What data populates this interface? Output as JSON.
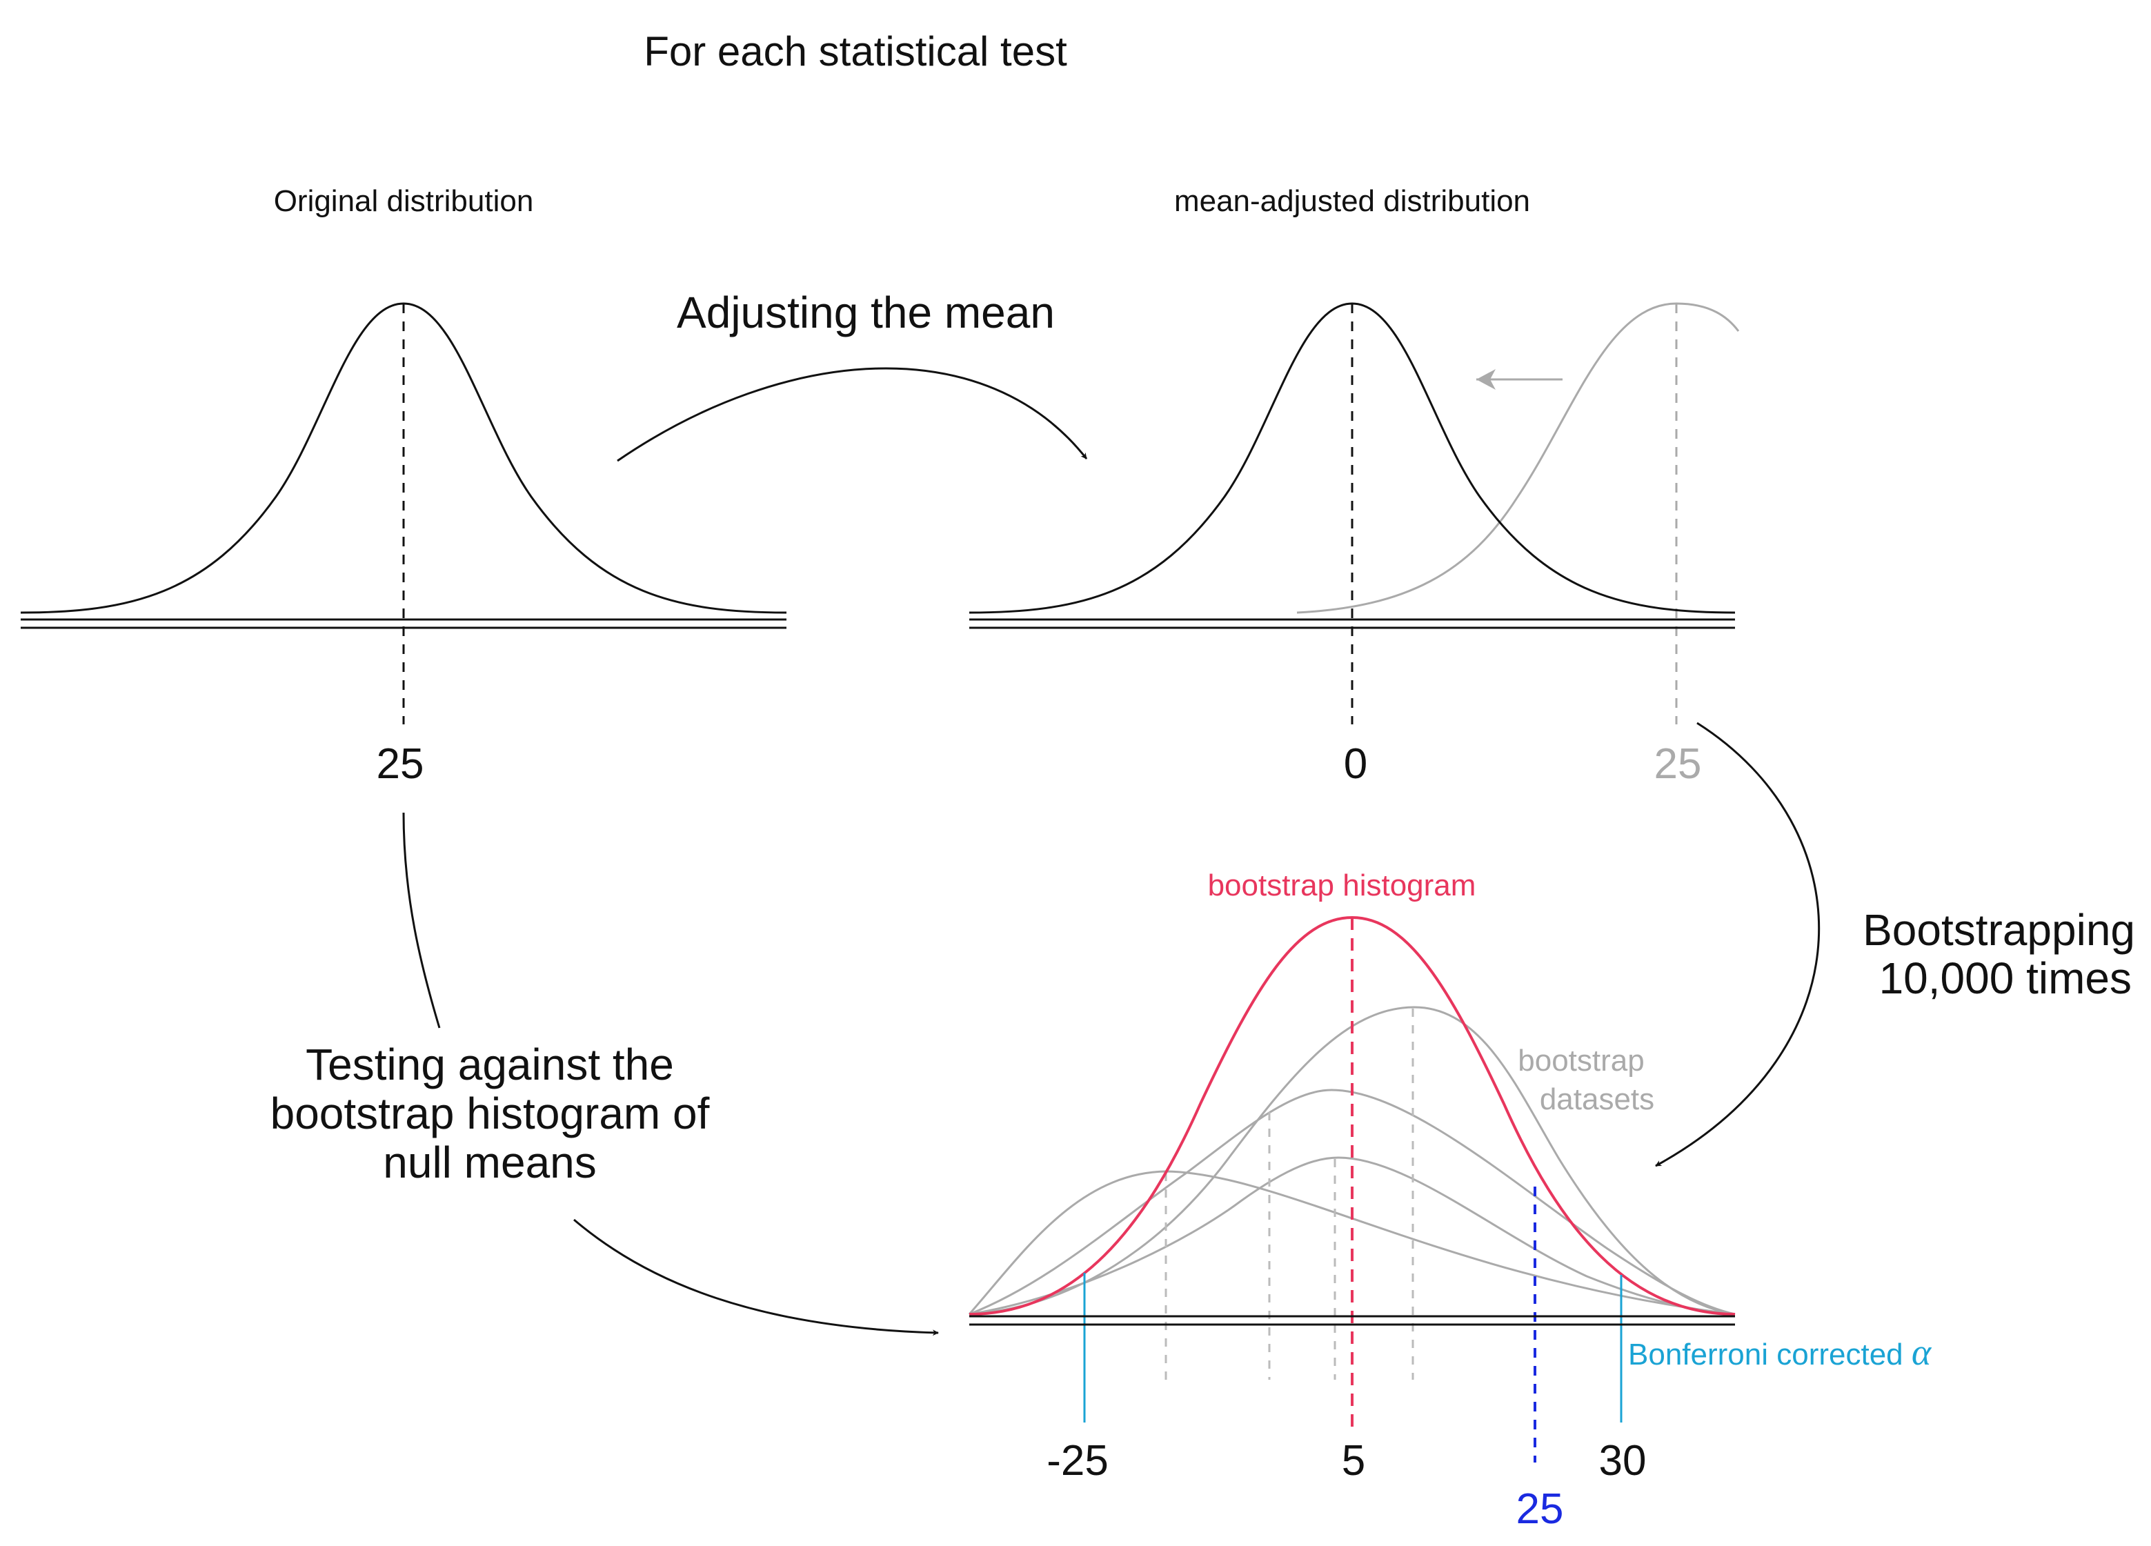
{
  "title": "For each statistical test",
  "panels": {
    "original": {
      "caption": "Original distribution",
      "mean_label": "25"
    },
    "adjusted": {
      "caption": "mean-adjusted distribution",
      "mean_label": "0",
      "original_mean_label": "25"
    }
  },
  "steps": {
    "adjust": "Adjusting the mean",
    "bootstrap_line1": "Bootstrapping",
    "bootstrap_line2": "10,000 times",
    "testing_line1": "Testing against the",
    "testing_line2": "bootstrap histogram of",
    "testing_line3": "null means"
  },
  "bootstrap_panel": {
    "histogram_label": "bootstrap histogram",
    "datasets_line1": "bootstrap",
    "datasets_line2": "datasets",
    "alpha_label": "Bonferroni corrected",
    "alpha_symbol": "α",
    "tick_left": "-25",
    "tick_center": "5",
    "tick_right": "30",
    "observed_label": "25"
  },
  "colors": {
    "ink": "#111111",
    "gray": "#aaaaaa",
    "histogram": "#e8365d",
    "alpha": "#1aa3d4",
    "observed": "#1a2ae0"
  }
}
